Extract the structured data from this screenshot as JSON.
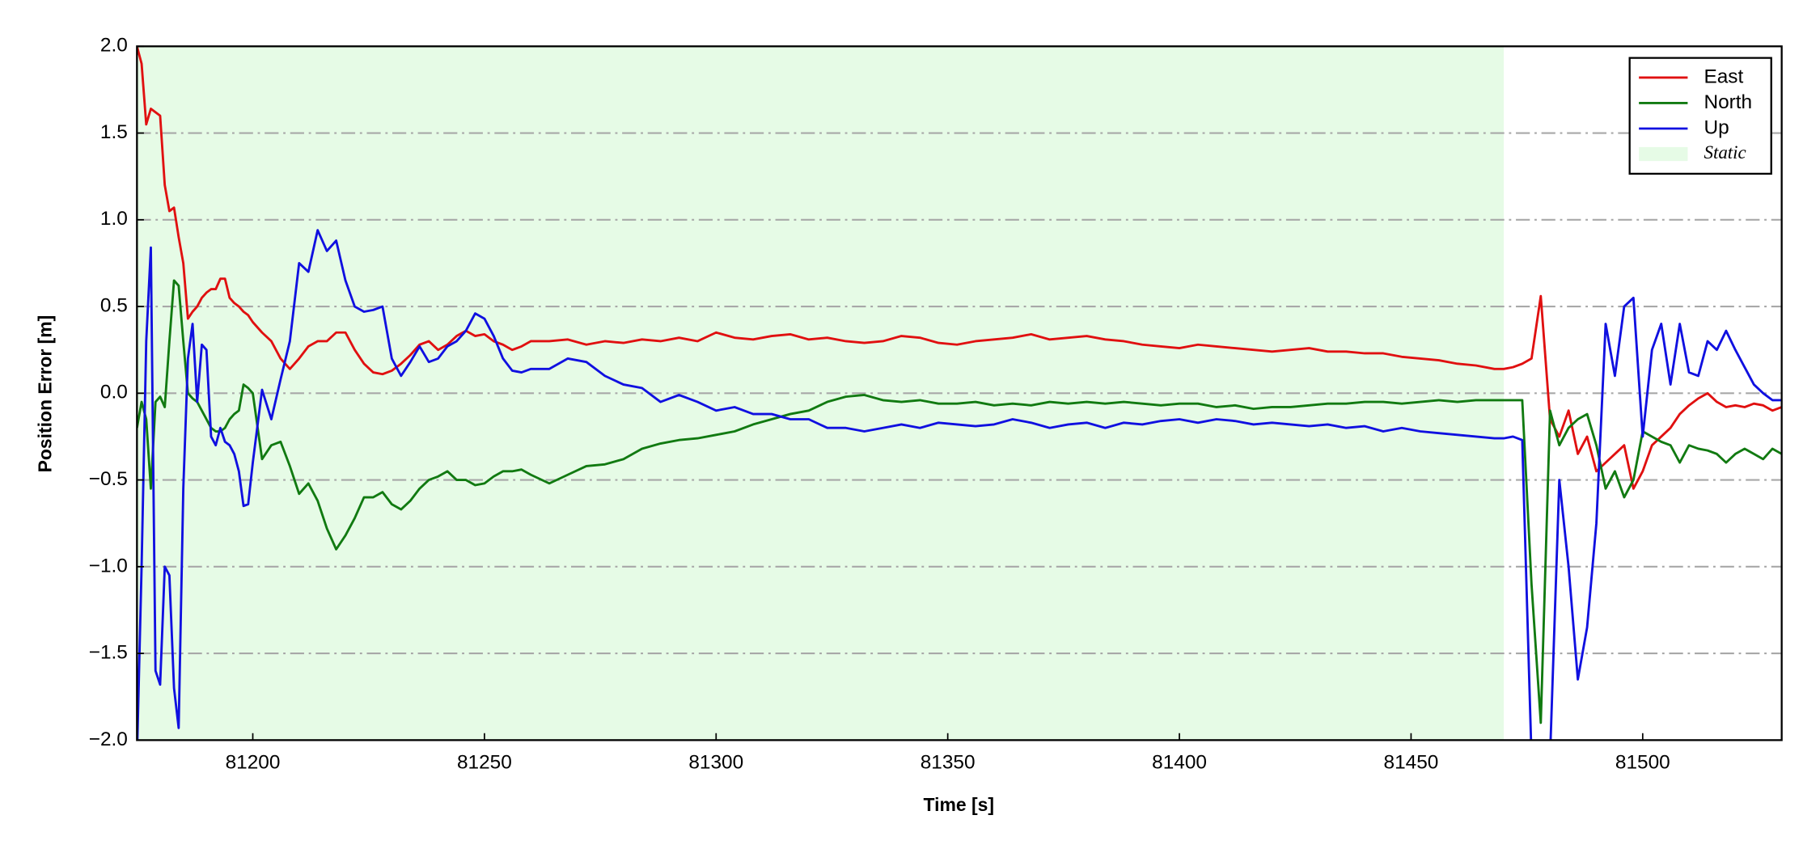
{
  "chart_data": {
    "type": "line",
    "xlabel": "Time [s]",
    "ylabel": "Position Error [m]",
    "xlim": [
      81175,
      81530
    ],
    "xticks": [
      81200,
      81250,
      81300,
      81350,
      81400,
      81450,
      81500
    ],
    "ylim": [
      -2,
      2
    ],
    "yticks": [
      {
        "value": -2,
        "label": "−2.0"
      },
      {
        "value": -1.5,
        "label": "−1.5"
      },
      {
        "value": -1,
        "label": "−1.0"
      },
      {
        "value": -0.5,
        "label": "−0.5"
      },
      {
        "value": 0,
        "label": "0.0"
      },
      {
        "value": 0.5,
        "label": "0.5"
      },
      {
        "value": 1,
        "label": "1.0"
      },
      {
        "value": 1.5,
        "label": "1.5"
      },
      {
        "value": 2,
        "label": "2.0"
      }
    ],
    "grid": true,
    "legend": "upper right",
    "spans": [
      {
        "label": "Static",
        "start": 81175,
        "end": 81470,
        "color": "#e6fbe6"
      }
    ],
    "x": [
      81175,
      81176,
      81177,
      81178,
      81179,
      81180,
      81181,
      81182,
      81183,
      81184,
      81185,
      81186,
      81187,
      81188,
      81189,
      81190,
      81191,
      81192,
      81193,
      81194,
      81195,
      81196,
      81197,
      81198,
      81199,
      81200,
      81202,
      81204,
      81206,
      81208,
      81210,
      81212,
      81214,
      81216,
      81218,
      81220,
      81222,
      81224,
      81226,
      81228,
      81230,
      81232,
      81234,
      81236,
      81238,
      81240,
      81242,
      81244,
      81246,
      81248,
      81250,
      81252,
      81254,
      81256,
      81258,
      81260,
      81264,
      81268,
      81272,
      81276,
      81280,
      81284,
      81288,
      81292,
      81296,
      81300,
      81304,
      81308,
      81312,
      81316,
      81320,
      81324,
      81328,
      81332,
      81336,
      81340,
      81344,
      81348,
      81352,
      81356,
      81360,
      81364,
      81368,
      81372,
      81376,
      81380,
      81384,
      81388,
      81392,
      81396,
      81400,
      81404,
      81408,
      81412,
      81416,
      81420,
      81424,
      81428,
      81432,
      81436,
      81440,
      81444,
      81448,
      81452,
      81456,
      81460,
      81464,
      81468,
      81470,
      81472,
      81474,
      81476,
      81478,
      81480,
      81482,
      81484,
      81486,
      81488,
      81490,
      81492,
      81494,
      81496,
      81498,
      81500,
      81502,
      81504,
      81506,
      81508,
      81510,
      81512,
      81514,
      81516,
      81518,
      81520,
      81522,
      81524,
      81526,
      81528,
      81530
    ],
    "series": [
      {
        "name": "East",
        "color": "#e01010",
        "values": [
          2.0,
          1.9,
          1.55,
          1.64,
          1.62,
          1.6,
          1.2,
          1.05,
          1.07,
          0.9,
          0.75,
          0.43,
          0.47,
          0.5,
          0.55,
          0.58,
          0.6,
          0.6,
          0.66,
          0.66,
          0.55,
          0.52,
          0.5,
          0.47,
          0.45,
          0.41,
          0.35,
          0.3,
          0.2,
          0.14,
          0.2,
          0.27,
          0.3,
          0.3,
          0.35,
          0.35,
          0.25,
          0.17,
          0.12,
          0.11,
          0.13,
          0.17,
          0.22,
          0.28,
          0.3,
          0.25,
          0.28,
          0.33,
          0.36,
          0.33,
          0.34,
          0.3,
          0.28,
          0.25,
          0.27,
          0.3,
          0.3,
          0.31,
          0.28,
          0.3,
          0.29,
          0.31,
          0.3,
          0.32,
          0.3,
          0.35,
          0.32,
          0.31,
          0.33,
          0.34,
          0.31,
          0.32,
          0.3,
          0.29,
          0.3,
          0.33,
          0.32,
          0.29,
          0.28,
          0.3,
          0.31,
          0.32,
          0.34,
          0.31,
          0.32,
          0.33,
          0.31,
          0.3,
          0.28,
          0.27,
          0.26,
          0.28,
          0.27,
          0.26,
          0.25,
          0.24,
          0.25,
          0.26,
          0.24,
          0.24,
          0.23,
          0.23,
          0.21,
          0.2,
          0.19,
          0.17,
          0.16,
          0.14,
          0.14,
          0.15,
          0.17,
          0.2,
          0.56,
          -0.15,
          -0.25,
          -0.1,
          -0.35,
          -0.25,
          -0.45,
          -0.4,
          -0.35,
          -0.3,
          -0.55,
          -0.45,
          -0.3,
          -0.25,
          -0.2,
          -0.12,
          -0.07,
          -0.03,
          0.0,
          -0.05,
          -0.08,
          -0.07,
          -0.08,
          -0.06,
          -0.07,
          -0.1,
          -0.08
        ]
      },
      {
        "name": "North",
        "color": "#117a11",
        "values": [
          -0.2,
          -0.05,
          -0.15,
          -0.55,
          -0.05,
          -0.02,
          -0.08,
          0.3,
          0.65,
          0.62,
          0.3,
          0.0,
          -0.03,
          -0.05,
          -0.1,
          -0.15,
          -0.2,
          -0.22,
          -0.22,
          -0.2,
          -0.15,
          -0.12,
          -0.1,
          0.05,
          0.03,
          0.0,
          -0.38,
          -0.3,
          -0.28,
          -0.42,
          -0.58,
          -0.52,
          -0.62,
          -0.78,
          -0.9,
          -0.82,
          -0.72,
          -0.6,
          -0.6,
          -0.57,
          -0.64,
          -0.67,
          -0.62,
          -0.55,
          -0.5,
          -0.48,
          -0.45,
          -0.5,
          -0.5,
          -0.53,
          -0.52,
          -0.48,
          -0.45,
          -0.45,
          -0.44,
          -0.47,
          -0.52,
          -0.47,
          -0.42,
          -0.41,
          -0.38,
          -0.32,
          -0.29,
          -0.27,
          -0.26,
          -0.24,
          -0.22,
          -0.18,
          -0.15,
          -0.12,
          -0.1,
          -0.05,
          -0.02,
          -0.01,
          -0.04,
          -0.05,
          -0.04,
          -0.06,
          -0.06,
          -0.05,
          -0.07,
          -0.06,
          -0.07,
          -0.05,
          -0.06,
          -0.05,
          -0.06,
          -0.05,
          -0.06,
          -0.07,
          -0.06,
          -0.06,
          -0.08,
          -0.07,
          -0.09,
          -0.08,
          -0.08,
          -0.07,
          -0.06,
          -0.06,
          -0.05,
          -0.05,
          -0.06,
          -0.05,
          -0.04,
          -0.05,
          -0.04,
          -0.04,
          -0.04,
          -0.04,
          -0.04,
          -1.1,
          -1.9,
          -0.1,
          -0.3,
          -0.2,
          -0.15,
          -0.12,
          -0.3,
          -0.55,
          -0.45,
          -0.6,
          -0.5,
          -0.22,
          -0.25,
          -0.28,
          -0.3,
          -0.4,
          -0.3,
          -0.32,
          -0.33,
          -0.35,
          -0.4,
          -0.35,
          -0.32,
          -0.35,
          -0.38,
          -0.32,
          -0.35
        ]
      },
      {
        "name": "Up",
        "color": "#1010e0",
        "values": [
          -2.1,
          -1.0,
          0.3,
          0.84,
          -1.6,
          -1.68,
          -1.0,
          -1.05,
          -1.7,
          -1.93,
          -0.55,
          0.2,
          0.4,
          -0.05,
          0.28,
          0.25,
          -0.25,
          -0.3,
          -0.2,
          -0.28,
          -0.3,
          -0.35,
          -0.45,
          -0.65,
          -0.64,
          -0.4,
          0.02,
          -0.15,
          0.08,
          0.3,
          0.75,
          0.7,
          0.94,
          0.82,
          0.88,
          0.65,
          0.5,
          0.47,
          0.48,
          0.5,
          0.2,
          0.1,
          0.18,
          0.27,
          0.18,
          0.2,
          0.27,
          0.3,
          0.36,
          0.46,
          0.43,
          0.33,
          0.2,
          0.13,
          0.12,
          0.14,
          0.14,
          0.2,
          0.18,
          0.1,
          0.05,
          0.03,
          -0.05,
          -0.01,
          -0.05,
          -0.1,
          -0.08,
          -0.12,
          -0.12,
          -0.15,
          -0.15,
          -0.2,
          -0.2,
          -0.22,
          -0.2,
          -0.18,
          -0.2,
          -0.17,
          -0.18,
          -0.19,
          -0.18,
          -0.15,
          -0.17,
          -0.2,
          -0.18,
          -0.17,
          -0.2,
          -0.17,
          -0.18,
          -0.16,
          -0.15,
          -0.17,
          -0.15,
          -0.16,
          -0.18,
          -0.17,
          -0.18,
          -0.19,
          -0.18,
          -0.2,
          -0.19,
          -0.22,
          -0.2,
          -0.22,
          -0.23,
          -0.24,
          -0.25,
          -0.26,
          -0.26,
          -0.25,
          -0.27,
          -2.1,
          -2.1,
          -2.1,
          -0.5,
          -1.0,
          -1.65,
          -1.35,
          -0.75,
          0.4,
          0.1,
          0.5,
          0.55,
          -0.25,
          0.25,
          0.4,
          0.05,
          0.4,
          0.12,
          0.1,
          0.3,
          0.25,
          0.36,
          0.25,
          0.15,
          0.05,
          0.0,
          -0.04,
          -0.04
        ]
      }
    ]
  }
}
